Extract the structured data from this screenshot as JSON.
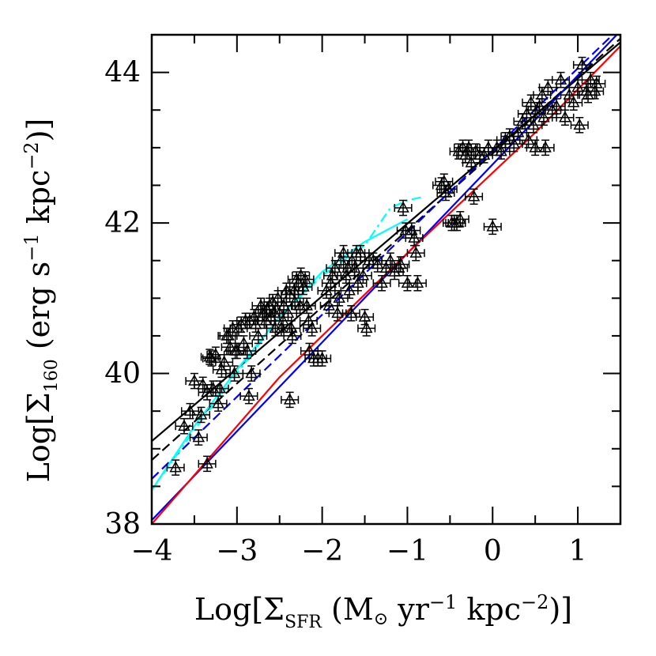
{
  "chart_data": {
    "type": "scatter",
    "title": "",
    "xlabel": {
      "prefix": "Log[Σ",
      "sub": "SFR",
      "mid": " (M",
      "sun_symbol": "⊙",
      "unit_a": " yr",
      "exp_a": "−1",
      "unit_b": " kpc",
      "exp_b": "−2",
      "suffix": ")]"
    },
    "ylabel": {
      "prefix": "Log[Σ",
      "sub": "160",
      "mid": " (erg s",
      "exp_a": "−1",
      "unit_b": " kpc",
      "exp_b": "−2",
      "suffix": ")]"
    },
    "xlim": [
      -4,
      1.5
    ],
    "ylim": [
      38,
      44.5
    ],
    "x_ticks": [
      -4,
      -3,
      -2,
      -1,
      0,
      1
    ],
    "x_tick_labels": [
      "−4",
      "−3",
      "−2",
      "−1",
      "0",
      "1"
    ],
    "y_ticks": [
      38,
      40,
      42,
      44
    ],
    "y_tick_labels": [
      "38",
      "40",
      "42",
      "44"
    ],
    "grid": false,
    "points": [
      [
        -3.72,
        38.75
      ],
      [
        -3.62,
        39.3
      ],
      [
        -3.55,
        39.5
      ],
      [
        -3.5,
        39.9
      ],
      [
        -3.45,
        39.15
      ],
      [
        -3.42,
        39.45
      ],
      [
        -3.4,
        39.85
      ],
      [
        -3.35,
        39.75
      ],
      [
        -3.35,
        38.8
      ],
      [
        -3.32,
        40.22
      ],
      [
        -3.3,
        40.2
      ],
      [
        -3.28,
        39.8
      ],
      [
        -3.25,
        40.25
      ],
      [
        -3.22,
        39.6
      ],
      [
        -3.2,
        39.8
      ],
      [
        -3.18,
        40.05
      ],
      [
        -3.15,
        40.15
      ],
      [
        -3.12,
        40.5
      ],
      [
        -3.1,
        40.5
      ],
      [
        -3.08,
        40.35
      ],
      [
        -3.05,
        40.6
      ],
      [
        -3.03,
        40.0
      ],
      [
        -3.02,
        40.3
      ],
      [
        -3.0,
        40.3
      ],
      [
        -2.98,
        40.6
      ],
      [
        -2.95,
        40.65
      ],
      [
        -2.92,
        40.4
      ],
      [
        -2.9,
        40.7
      ],
      [
        -2.88,
        40.3
      ],
      [
        -2.86,
        39.7
      ],
      [
        -2.85,
        40.7
      ],
      [
        -2.83,
        40.0
      ],
      [
        -2.8,
        40.75
      ],
      [
        -2.78,
        40.65
      ],
      [
        -2.75,
        40.5
      ],
      [
        -2.72,
        40.9
      ],
      [
        -2.7,
        40.8
      ],
      [
        -2.68,
        40.8
      ],
      [
        -2.66,
        40.7
      ],
      [
        -2.65,
        40.85
      ],
      [
        -2.62,
        40.9
      ],
      [
        -2.6,
        40.75
      ],
      [
        -2.58,
        40.95
      ],
      [
        -2.56,
        40.8
      ],
      [
        -2.55,
        40.6
      ],
      [
        -2.52,
        41.0
      ],
      [
        -2.5,
        40.8
      ],
      [
        -2.48,
        40.6
      ],
      [
        -2.46,
        40.7
      ],
      [
        -2.45,
        40.9
      ],
      [
        -2.42,
        41.1
      ],
      [
        -2.4,
        40.8
      ],
      [
        -2.38,
        41.05
      ],
      [
        -2.36,
        40.6
      ],
      [
        -2.35,
        40.5
      ],
      [
        -2.33,
        41.1
      ],
      [
        -2.32,
        40.95
      ],
      [
        -2.3,
        41.25
      ],
      [
        -2.28,
        41.2
      ],
      [
        -2.26,
        40.9
      ],
      [
        -2.25,
        41.3
      ],
      [
        -2.22,
        41.15
      ],
      [
        -2.2,
        41.25
      ],
      [
        -2.18,
        40.9
      ],
      [
        -2.16,
        40.7
      ],
      [
        -2.15,
        40.3
      ],
      [
        -2.12,
        40.6
      ],
      [
        -2.1,
        40.2
      ],
      [
        -2.05,
        40.2
      ],
      [
        -2.0,
        40.2
      ],
      [
        -2.38,
        39.65
      ],
      [
        -1.95,
        41.1
      ],
      [
        -1.92,
        40.9
      ],
      [
        -1.9,
        41.2
      ],
      [
        -1.88,
        41.3
      ],
      [
        -1.85,
        41.4
      ],
      [
        -1.82,
        40.8
      ],
      [
        -1.8,
        41.0
      ],
      [
        -1.78,
        41.5
      ],
      [
        -1.75,
        41.6
      ],
      [
        -1.72,
        41.3
      ],
      [
        -1.7,
        41.4
      ],
      [
        -1.68,
        41.1
      ],
      [
        -1.66,
        40.8
      ],
      [
        -1.65,
        41.5
      ],
      [
        -1.62,
        41.4
      ],
      [
        -1.6,
        41.6
      ],
      [
        -1.58,
        41.2
      ],
      [
        -1.55,
        41.6
      ],
      [
        -1.52,
        41.3
      ],
      [
        -1.5,
        40.75
      ],
      [
        -1.48,
        40.6
      ],
      [
        -1.45,
        41.5
      ],
      [
        -1.4,
        41.5
      ],
      [
        -1.35,
        41.45
      ],
      [
        -1.3,
        41.2
      ],
      [
        -1.25,
        41.4
      ],
      [
        -1.2,
        41.5
      ],
      [
        -1.15,
        41.35
      ],
      [
        -1.1,
        41.4
      ],
      [
        -1.08,
        41.45
      ],
      [
        -1.05,
        42.2
      ],
      [
        -1.02,
        41.9
      ],
      [
        -1.0,
        41.2
      ],
      [
        -0.95,
        41.9
      ],
      [
        -0.92,
        41.8
      ],
      [
        -0.9,
        41.6
      ],
      [
        -0.88,
        41.2
      ],
      [
        -0.6,
        42.5
      ],
      [
        -0.57,
        42.55
      ],
      [
        -0.55,
        42.4
      ],
      [
        -0.52,
        42.45
      ],
      [
        -0.48,
        42.0
      ],
      [
        -0.45,
        42.0
      ],
      [
        -0.42,
        42.0
      ],
      [
        -0.4,
        42.95
      ],
      [
        -0.38,
        42.05
      ],
      [
        -0.35,
        43.0
      ],
      [
        -0.32,
        42.9
      ],
      [
        -0.3,
        42.95
      ],
      [
        -0.28,
        43.0
      ],
      [
        -0.25,
        42.8
      ],
      [
        -0.22,
        42.35
      ],
      [
        -0.2,
        42.95
      ],
      [
        -0.15,
        42.9
      ],
      [
        -0.1,
        42.9
      ],
      [
        -0.05,
        43.0
      ],
      [
        0.0,
        41.95
      ],
      [
        0.05,
        43.0
      ],
      [
        0.1,
        42.95
      ],
      [
        0.15,
        43.1
      ],
      [
        0.2,
        43.15
      ],
      [
        0.25,
        43.05
      ],
      [
        0.3,
        43.2
      ],
      [
        0.35,
        43.35
      ],
      [
        0.4,
        43.45
      ],
      [
        0.42,
        43.1
      ],
      [
        0.45,
        43.6
      ],
      [
        0.48,
        43.3
      ],
      [
        0.5,
        43.0
      ],
      [
        0.52,
        43.5
      ],
      [
        0.55,
        43.55
      ],
      [
        0.58,
        43.7
      ],
      [
        0.6,
        43.4
      ],
      [
        0.62,
        43.0
      ],
      [
        0.65,
        43.8
      ],
      [
        0.7,
        43.5
      ],
      [
        0.75,
        43.55
      ],
      [
        0.8,
        43.9
      ],
      [
        0.85,
        43.4
      ],
      [
        0.9,
        43.7
      ],
      [
        0.95,
        43.6
      ],
      [
        1.0,
        43.8
      ],
      [
        1.02,
        43.3
      ],
      [
        1.05,
        44.1
      ],
      [
        1.1,
        43.75
      ],
      [
        1.12,
        43.7
      ],
      [
        1.15,
        43.9
      ],
      [
        1.2,
        43.75
      ],
      [
        1.22,
        43.85
      ]
    ],
    "series": [
      {
        "color": "#000000",
        "style": "solid",
        "x": [
          -4,
          1.5
        ],
        "y": [
          39.1,
          44.4
        ]
      },
      {
        "color": "#000000",
        "style": "dashed",
        "x": [
          -4,
          1.5
        ],
        "y": [
          38.85,
          44.45
        ]
      },
      {
        "color": "#0000ff",
        "style": "solid",
        "x": [
          -4,
          1.5
        ],
        "y": [
          38.05,
          44.55
        ]
      },
      {
        "color": "#0000ff",
        "style": "dashed",
        "x": [
          -4,
          1.5
        ],
        "y": [
          38.6,
          44.6
        ]
      },
      {
        "color": "#ff0000",
        "style": "solid",
        "x": [
          -4,
          -2.5,
          -1,
          0.5,
          1.5
        ],
        "y": [
          38.0,
          39.95,
          41.6,
          43.2,
          44.35
        ]
      },
      {
        "color": "#00ffff",
        "style": "solid",
        "x": [
          -4,
          -3.5,
          -3.0,
          -2.5,
          -2.0,
          -1.5,
          -1.0
        ],
        "y": [
          38.45,
          39.3,
          40.05,
          40.75,
          41.35,
          41.75,
          42.05
        ]
      },
      {
        "color": "#00ffff",
        "style": "dashdot",
        "x": [
          -4,
          -3.5,
          -3.0,
          -2.5,
          -2.0,
          -1.5,
          -1.2,
          -1.0,
          -0.8
        ],
        "y": [
          38.45,
          39.25,
          40.0,
          40.75,
          41.3,
          41.7,
          42.2,
          42.3,
          42.35
        ]
      }
    ]
  }
}
